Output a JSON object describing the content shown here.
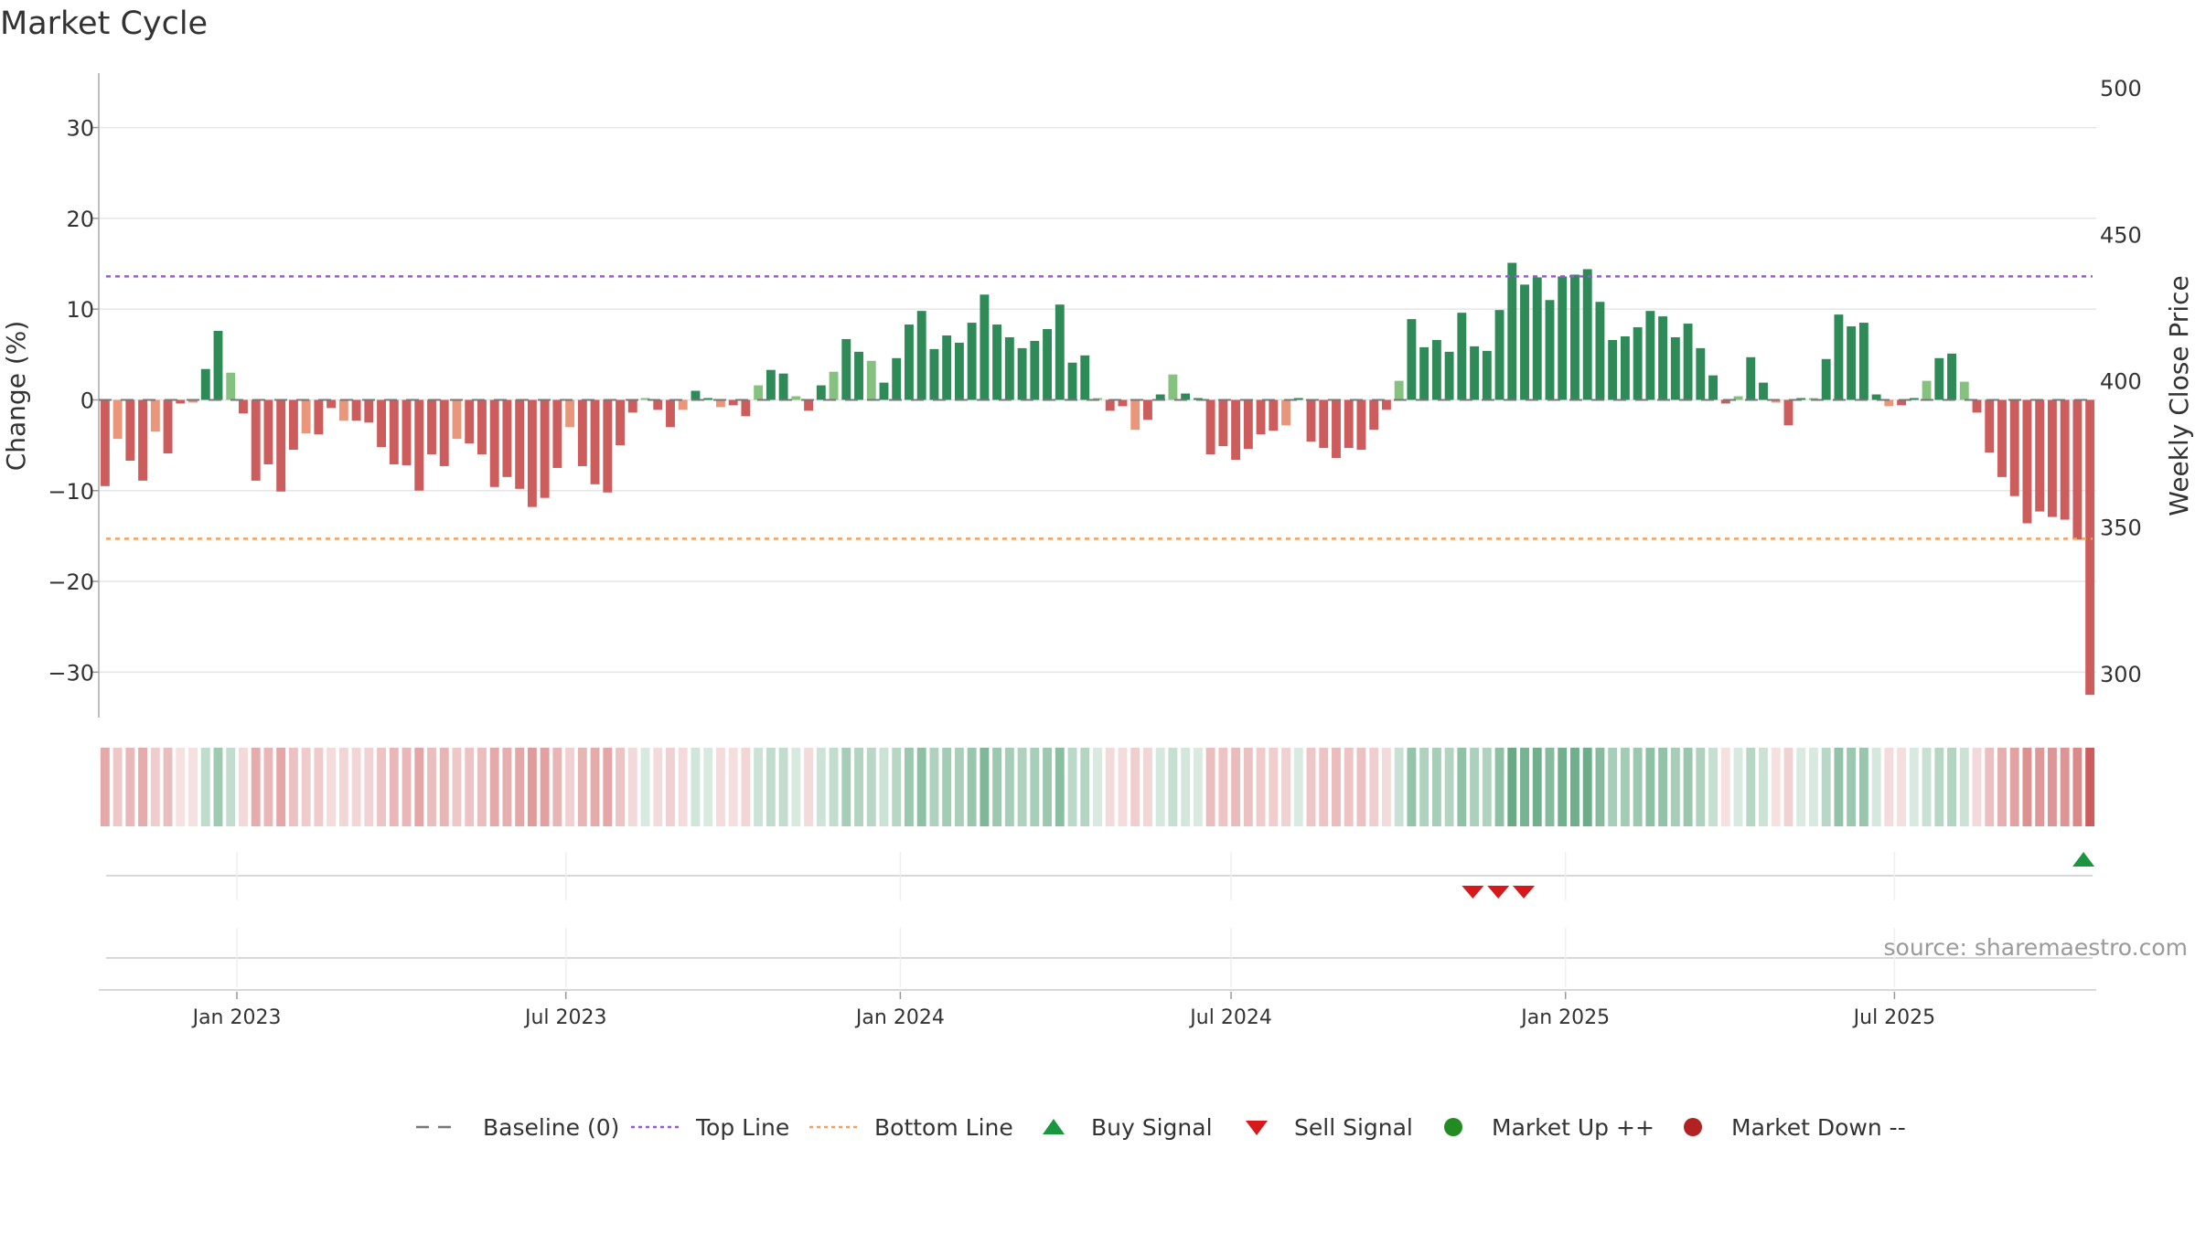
{
  "title": "Market Cycle",
  "source_note": "source: sharemaestro.com",
  "colors": {
    "up_strong": "#2e8b57",
    "up_weak": "#86c27f",
    "down_strong": "#cd5c5c",
    "down_weak": "#e9967a",
    "top_line": "#9b59d0",
    "bottom_line": "#f0a060",
    "baseline": "#777777",
    "buy_signal": "#1a9641",
    "sell_signal": "#d7191c",
    "market_up": "#228b22",
    "market_down": "#b22222",
    "grid": "#e6e6e6"
  },
  "chart_data": {
    "type": "bar",
    "title": "Market Cycle",
    "ylabel": "Change (%)",
    "y2label": "Weekly Close Price",
    "ylim": [
      -35,
      36
    ],
    "y_ticks": [
      30,
      20,
      10,
      0,
      -10,
      -20,
      -30
    ],
    "y_tick_labels": [
      "30",
      "20",
      "10",
      "0",
      "−10",
      "−20",
      "−30"
    ],
    "y2lim": [
      285,
      505
    ],
    "y2_ticks": [
      500,
      450,
      400,
      350,
      300
    ],
    "y2_tick_labels": [
      "500",
      "450",
      "400",
      "350",
      "300"
    ],
    "x_start": "2022-10-17",
    "x_end": "2025-10-20",
    "x_ticks": [
      "2023-01-01",
      "2023-07-01",
      "2024-01-01",
      "2024-07-01",
      "2025-01-01",
      "2025-07-01"
    ],
    "x_tick_labels": [
      "Jan 2023",
      "Jul 2023",
      "Jan 2024",
      "Jul 2024",
      "Jan 2025",
      "Jul 2025"
    ],
    "grid": true,
    "top_line": 13.6,
    "bottom_line": -15.3,
    "baseline": 0,
    "values": [
      -9.5,
      -4.3,
      -6.7,
      -8.9,
      -3.5,
      -5.9,
      -0.4,
      -0.3,
      3.4,
      7.6,
      3.0,
      -1.5,
      -8.9,
      -7.1,
      -10.1,
      -5.5,
      -3.7,
      -3.8,
      -0.9,
      -2.3,
      -2.3,
      -2.5,
      -5.2,
      -7.1,
      -7.2,
      -10.0,
      -6.0,
      -7.3,
      -4.3,
      -4.8,
      -6.0,
      -9.6,
      -8.5,
      -9.8,
      -11.8,
      -10.8,
      -7.5,
      -3.0,
      -7.3,
      -9.3,
      -10.2,
      -5.0,
      -1.4,
      0.2,
      -1.1,
      -3.0,
      -1.1,
      1.0,
      0.2,
      -0.8,
      -0.6,
      -1.8,
      1.6,
      3.3,
      2.9,
      0.4,
      -1.2,
      1.6,
      3.1,
      6.7,
      5.3,
      4.3,
      1.9,
      4.6,
      8.3,
      9.8,
      5.6,
      7.1,
      6.3,
      8.5,
      11.6,
      8.3,
      6.9,
      5.7,
      6.5,
      7.8,
      10.5,
      4.1,
      4.9,
      0.2,
      -1.2,
      -0.7,
      -3.3,
      -2.2,
      0.6,
      2.8,
      0.7,
      0.1,
      -6.0,
      -5.1,
      -6.6,
      -5.4,
      -3.8,
      -3.4,
      -2.8,
      0.1,
      -4.6,
      -5.3,
      -6.4,
      -5.3,
      -5.5,
      -3.3,
      -1.1,
      2.1,
      8.9,
      5.8,
      6.6,
      5.3,
      9.6,
      5.9,
      5.4,
      9.9,
      15.1,
      12.7,
      13.5,
      11.0,
      13.6,
      13.8,
      14.4,
      10.8,
      6.6,
      7.0,
      8.0,
      9.8,
      9.2,
      6.9,
      8.4,
      5.7,
      2.7,
      -0.4,
      0.4,
      4.7,
      1.9,
      -0.3,
      -2.8,
      0.1,
      0.2,
      4.5,
      9.4,
      8.1,
      8.5,
      0.6,
      -0.7,
      -0.6,
      0.2,
      2.1,
      4.6,
      5.1,
      2.0,
      -1.4,
      -5.8,
      -8.5,
      -10.6,
      -13.6,
      -12.3,
      -12.9,
      -13.2,
      -15.4,
      -32.5
    ],
    "signals": {
      "buy": [
        "2025-10-13"
      ],
      "sell": [
        "2024-11-11",
        "2024-11-25",
        "2024-12-09"
      ]
    },
    "legend": {
      "placement": "bottom-center",
      "items": [
        {
          "label": "Baseline (0)",
          "marker": "dash"
        },
        {
          "label": "Top Line",
          "marker": "dot-purple"
        },
        {
          "label": "Bottom Line",
          "marker": "dot-orange"
        },
        {
          "label": "Buy Signal",
          "marker": "triangle-up"
        },
        {
          "label": "Sell Signal",
          "marker": "triangle-down"
        },
        {
          "label": "Market Up ++",
          "marker": "circle-green"
        },
        {
          "label": "Market Down --",
          "marker": "circle-red"
        }
      ]
    }
  }
}
